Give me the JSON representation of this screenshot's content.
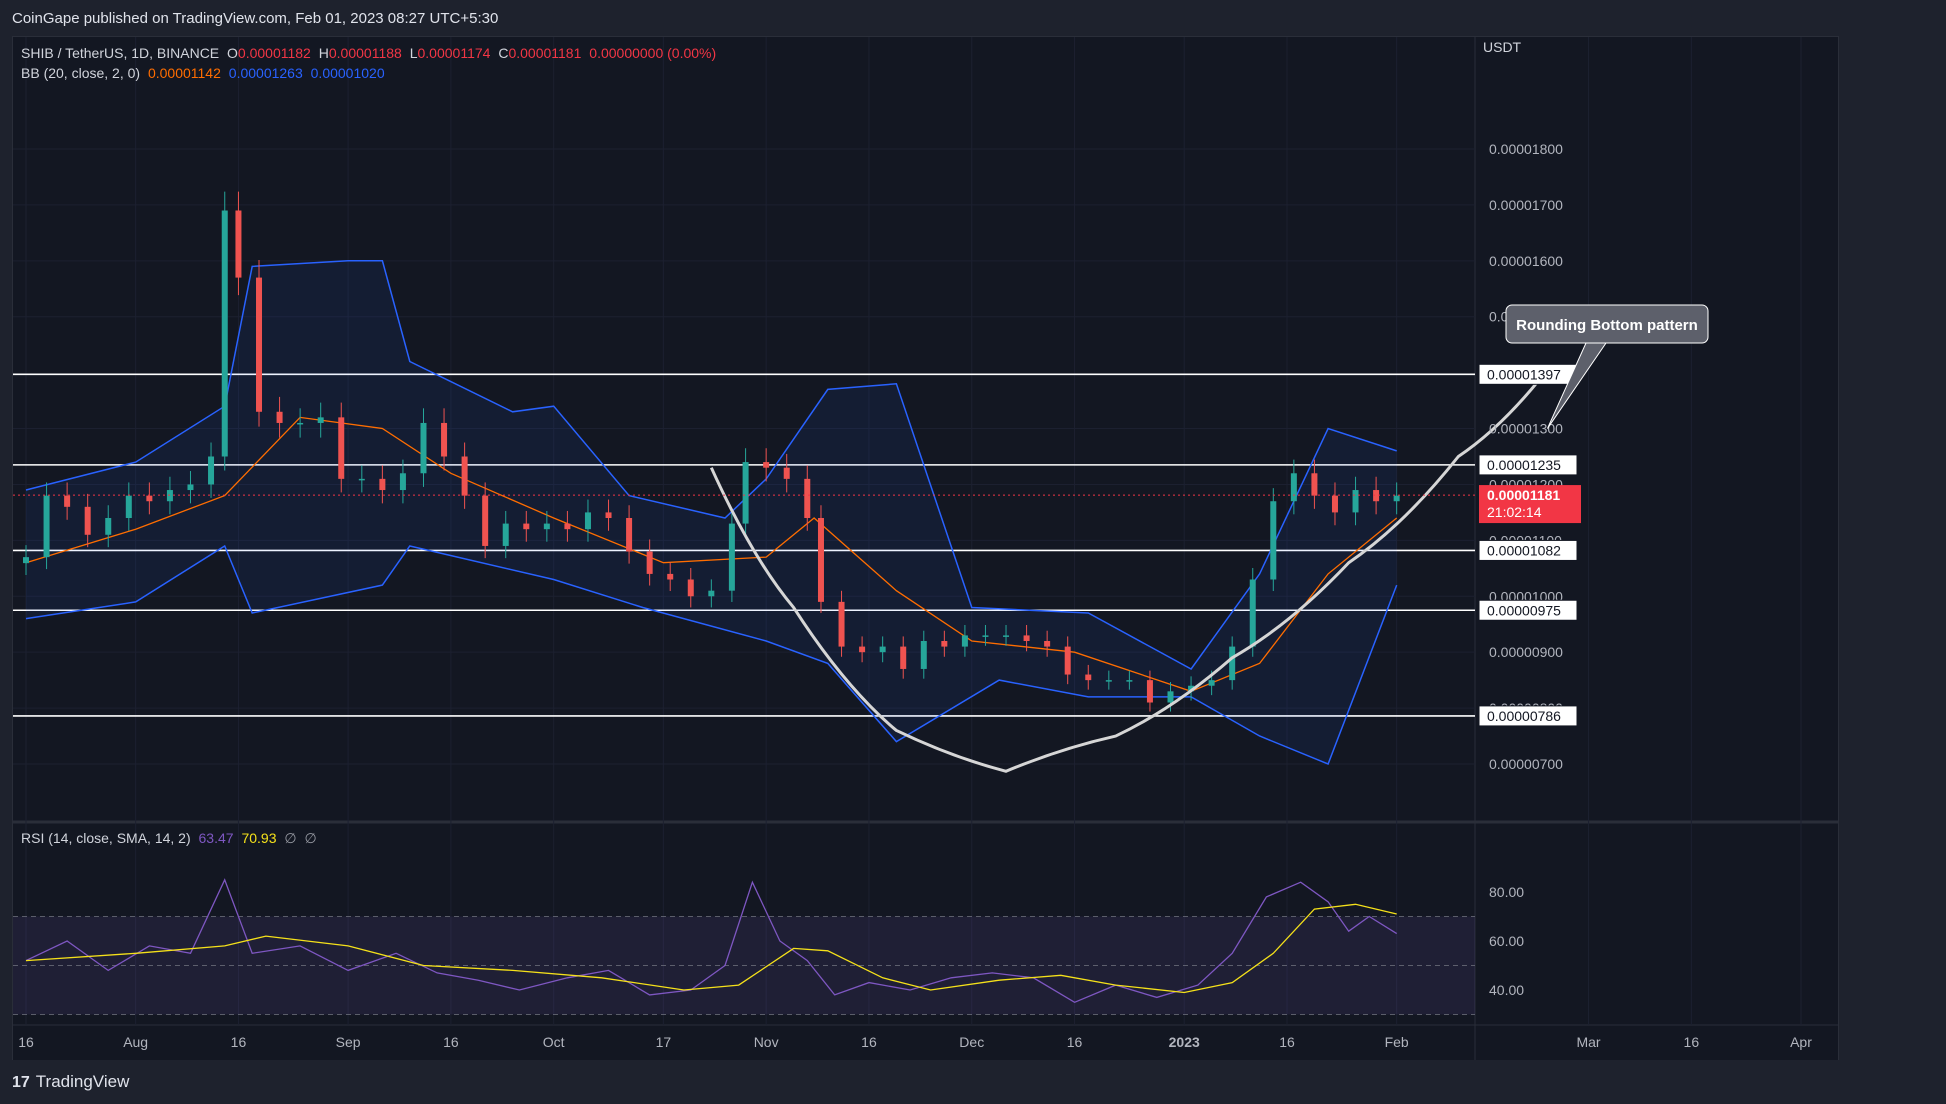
{
  "header": {
    "published": "CoinGape published on TradingView.com, Feb 01, 2023 08:27 UTC+5:30"
  },
  "footer": {
    "brand": "TradingView"
  },
  "legend_main": {
    "symbol": "SHIB / TetherUS, 1D, BINANCE",
    "o_label": "O",
    "o": "0.00001182",
    "h_label": "H",
    "h": "0.00001188",
    "l_label": "L",
    "l": "0.00001174",
    "c_label": "C",
    "c": "0.00001181",
    "change": "0.00000000 (0.00%)"
  },
  "legend_bb": {
    "label": "BB (20, close, 2, 0)",
    "basis": "0.00001142",
    "upper": "0.00001263",
    "lower": "0.00001020"
  },
  "legend_rsi": {
    "label": "RSI (14, close, SMA, 14, 2)",
    "rsi": "63.47",
    "sma": "70.93",
    "e1": "∅",
    "e2": "∅"
  },
  "colors": {
    "background": "#131722",
    "up": "#26a69a",
    "down": "#ef5350",
    "bb_band": "#2962ff",
    "bb_basis": "#ff6d00",
    "rsi_line": "#7e57c2",
    "rsi_sma": "#f5e11a",
    "price_tag": "#f23645"
  },
  "chart_data": [
    {
      "type": "candlestick",
      "title": "SHIB / TetherUS, 1D, BINANCE",
      "currency": "USDT",
      "y_ticks": [
        "0.00001800",
        "0.00001700",
        "0.00001600",
        "0.00001500",
        "0.00001300",
        "0.00001200",
        "0.00001100",
        "0.00001000",
        "0.00000900",
        "0.00000800",
        "0.00000700"
      ],
      "x_ticks": [
        "16",
        "Aug",
        "16",
        "Sep",
        "16",
        "Oct",
        "17",
        "Nov",
        "16",
        "Dec",
        "16",
        "2023",
        "16",
        "Feb",
        "Mar",
        "16",
        "Apr"
      ],
      "x_tick_dates": [
        "2022-07-16",
        "2022-08-01",
        "2022-08-16",
        "2022-09-01",
        "2022-09-16",
        "2022-10-01",
        "2022-10-17",
        "2022-11-01",
        "2022-11-16",
        "2022-12-01",
        "2022-12-16",
        "2023-01-01",
        "2023-01-16",
        "2023-02-01",
        "2023-03-01",
        "2023-03-16",
        "2023-04-01"
      ],
      "ylim": [
        6.5e-06,
        1.93e-05
      ],
      "horizontal_levels": [
        "0.00001397",
        "0.00001235",
        "0.00001082",
        "0.00000975",
        "0.00000786"
      ],
      "current_price": "0.00001181",
      "countdown": "21:02:14",
      "annotation": "Rounding Bottom pattern",
      "close_series": [
        {
          "date": "2022-07-16",
          "close": 1.07e-05
        },
        {
          "date": "2022-07-19",
          "close": 1.18e-05
        },
        {
          "date": "2022-07-22",
          "close": 1.16e-05
        },
        {
          "date": "2022-07-25",
          "close": 1.11e-05
        },
        {
          "date": "2022-07-28",
          "close": 1.14e-05
        },
        {
          "date": "2022-07-31",
          "close": 1.18e-05
        },
        {
          "date": "2022-08-03",
          "close": 1.17e-05
        },
        {
          "date": "2022-08-06",
          "close": 1.19e-05
        },
        {
          "date": "2022-08-09",
          "close": 1.2e-05
        },
        {
          "date": "2022-08-12",
          "close": 1.25e-05
        },
        {
          "date": "2022-08-14",
          "close": 1.69e-05
        },
        {
          "date": "2022-08-16",
          "close": 1.57e-05
        },
        {
          "date": "2022-08-19",
          "close": 1.33e-05
        },
        {
          "date": "2022-08-22",
          "close": 1.31e-05
        },
        {
          "date": "2022-08-25",
          "close": 1.31e-05
        },
        {
          "date": "2022-08-28",
          "close": 1.32e-05
        },
        {
          "date": "2022-08-31",
          "close": 1.21e-05
        },
        {
          "date": "2022-09-03",
          "close": 1.21e-05
        },
        {
          "date": "2022-09-06",
          "close": 1.19e-05
        },
        {
          "date": "2022-09-09",
          "close": 1.22e-05
        },
        {
          "date": "2022-09-12",
          "close": 1.31e-05
        },
        {
          "date": "2022-09-15",
          "close": 1.25e-05
        },
        {
          "date": "2022-09-18",
          "close": 1.18e-05
        },
        {
          "date": "2022-09-21",
          "close": 1.09e-05
        },
        {
          "date": "2022-09-24",
          "close": 1.13e-05
        },
        {
          "date": "2022-09-27",
          "close": 1.12e-05
        },
        {
          "date": "2022-09-30",
          "close": 1.13e-05
        },
        {
          "date": "2022-10-03",
          "close": 1.12e-05
        },
        {
          "date": "2022-10-06",
          "close": 1.15e-05
        },
        {
          "date": "2022-10-09",
          "close": 1.14e-05
        },
        {
          "date": "2022-10-12",
          "close": 1.08e-05
        },
        {
          "date": "2022-10-15",
          "close": 1.04e-05
        },
        {
          "date": "2022-10-18",
          "close": 1.03e-05
        },
        {
          "date": "2022-10-21",
          "close": 1e-05
        },
        {
          "date": "2022-10-24",
          "close": 1.01e-05
        },
        {
          "date": "2022-10-27",
          "close": 1.13e-05
        },
        {
          "date": "2022-10-29",
          "close": 1.24e-05
        },
        {
          "date": "2022-11-01",
          "close": 1.23e-05
        },
        {
          "date": "2022-11-04",
          "close": 1.21e-05
        },
        {
          "date": "2022-11-07",
          "close": 1.14e-05
        },
        {
          "date": "2022-11-09",
          "close": 9.9e-06
        },
        {
          "date": "2022-11-12",
          "close": 9.1e-06
        },
        {
          "date": "2022-11-15",
          "close": 9e-06
        },
        {
          "date": "2022-11-18",
          "close": 9.1e-06
        },
        {
          "date": "2022-11-21",
          "close": 8.7e-06
        },
        {
          "date": "2022-11-24",
          "close": 9.2e-06
        },
        {
          "date": "2022-11-27",
          "close": 9.1e-06
        },
        {
          "date": "2022-11-30",
          "close": 9.3e-06
        },
        {
          "date": "2022-12-03",
          "close": 9.3e-06
        },
        {
          "date": "2022-12-06",
          "close": 9.3e-06
        },
        {
          "date": "2022-12-09",
          "close": 9.2e-06
        },
        {
          "date": "2022-12-12",
          "close": 9.1e-06
        },
        {
          "date": "2022-12-15",
          "close": 8.6e-06
        },
        {
          "date": "2022-12-18",
          "close": 8.5e-06
        },
        {
          "date": "2022-12-21",
          "close": 8.5e-06
        },
        {
          "date": "2022-12-24",
          "close": 8.5e-06
        },
        {
          "date": "2022-12-27",
          "close": 8.1e-06
        },
        {
          "date": "2022-12-30",
          "close": 8.3e-06
        },
        {
          "date": "2023-01-02",
          "close": 8.4e-06
        },
        {
          "date": "2023-01-05",
          "close": 8.5e-06
        },
        {
          "date": "2023-01-08",
          "close": 9.1e-06
        },
        {
          "date": "2023-01-11",
          "close": 1.03e-05
        },
        {
          "date": "2023-01-14",
          "close": 1.17e-05
        },
        {
          "date": "2023-01-17",
          "close": 1.22e-05
        },
        {
          "date": "2023-01-20",
          "close": 1.18e-05
        },
        {
          "date": "2023-01-23",
          "close": 1.15e-05
        },
        {
          "date": "2023-01-26",
          "close": 1.19e-05
        },
        {
          "date": "2023-01-29",
          "close": 1.17e-05
        },
        {
          "date": "2023-02-01",
          "close": 1.18e-05
        }
      ],
      "bb_upper": [
        {
          "date": "2022-07-16",
          "value": 1.19e-05
        },
        {
          "date": "2022-08-01",
          "value": 1.24e-05
        },
        {
          "date": "2022-08-14",
          "value": 1.34e-05
        },
        {
          "date": "2022-08-18",
          "value": 1.59e-05
        },
        {
          "date": "2022-09-01",
          "value": 1.6e-05
        },
        {
          "date": "2022-09-06",
          "value": 1.6e-05
        },
        {
          "date": "2022-09-10",
          "value": 1.42e-05
        },
        {
          "date": "2022-09-25",
          "value": 1.33e-05
        },
        {
          "date": "2022-10-01",
          "value": 1.34e-05
        },
        {
          "date": "2022-10-12",
          "value": 1.18e-05
        },
        {
          "date": "2022-10-26",
          "value": 1.14e-05
        },
        {
          "date": "2022-11-01",
          "value": 1.21e-05
        },
        {
          "date": "2022-11-10",
          "value": 1.37e-05
        },
        {
          "date": "2022-11-20",
          "value": 1.38e-05
        },
        {
          "date": "2022-12-01",
          "value": 9.8e-06
        },
        {
          "date": "2022-12-18",
          "value": 9.7e-06
        },
        {
          "date": "2023-01-02",
          "value": 8.7e-06
        },
        {
          "date": "2023-01-12",
          "value": 1.04e-05
        },
        {
          "date": "2023-01-22",
          "value": 1.3e-05
        },
        {
          "date": "2023-02-01",
          "value": 1.26e-05
        }
      ],
      "bb_lower": [
        {
          "date": "2022-07-16",
          "value": 9.6e-06
        },
        {
          "date": "2022-08-01",
          "value": 9.9e-06
        },
        {
          "date": "2022-08-14",
          "value": 1.09e-05
        },
        {
          "date": "2022-08-18",
          "value": 9.7e-06
        },
        {
          "date": "2022-09-06",
          "value": 1.02e-05
        },
        {
          "date": "2022-09-10",
          "value": 1.09e-05
        },
        {
          "date": "2022-10-01",
          "value": 1.03e-05
        },
        {
          "date": "2022-10-14",
          "value": 9.8e-06
        },
        {
          "date": "2022-11-01",
          "value": 9.2e-06
        },
        {
          "date": "2022-11-10",
          "value": 8.8e-06
        },
        {
          "date": "2022-11-20",
          "value": 7.4e-06
        },
        {
          "date": "2022-12-05",
          "value": 8.5e-06
        },
        {
          "date": "2022-12-18",
          "value": 8.2e-06
        },
        {
          "date": "2023-01-02",
          "value": 8.2e-06
        },
        {
          "date": "2023-01-12",
          "value": 7.5e-06
        },
        {
          "date": "2023-01-22",
          "value": 7e-06
        },
        {
          "date": "2023-02-01",
          "value": 1.02e-05
        }
      ],
      "bb_basis": [
        {
          "date": "2022-07-16",
          "value": 1.06e-05
        },
        {
          "date": "2022-08-01",
          "value": 1.12e-05
        },
        {
          "date": "2022-08-14",
          "value": 1.18e-05
        },
        {
          "date": "2022-08-25",
          "value": 1.32e-05
        },
        {
          "date": "2022-09-06",
          "value": 1.3e-05
        },
        {
          "date": "2022-09-16",
          "value": 1.22e-05
        },
        {
          "date": "2022-10-01",
          "value": 1.14e-05
        },
        {
          "date": "2022-10-17",
          "value": 1.06e-05
        },
        {
          "date": "2022-11-01",
          "value": 1.07e-05
        },
        {
          "date": "2022-11-08",
          "value": 1.14e-05
        },
        {
          "date": "2022-11-20",
          "value": 1.01e-05
        },
        {
          "date": "2022-12-01",
          "value": 9.2e-06
        },
        {
          "date": "2022-12-16",
          "value": 9e-06
        },
        {
          "date": "2023-01-02",
          "value": 8.3e-06
        },
        {
          "date": "2023-01-12",
          "value": 8.8e-06
        },
        {
          "date": "2023-01-22",
          "value": 1.04e-05
        },
        {
          "date": "2023-02-01",
          "value": 1.14e-05
        }
      ]
    },
    {
      "type": "line",
      "title": "RSI (14, close, SMA, 14, 2)",
      "y_ticks": [
        "80.00",
        "60.00",
        "40.00"
      ],
      "bands": [
        70,
        50,
        30
      ],
      "ylim": [
        22,
        92
      ],
      "series": [
        {
          "name": "RSI",
          "values": [
            {
              "date": "2022-07-16",
              "value": 52
            },
            {
              "date": "2022-07-22",
              "value": 60
            },
            {
              "date": "2022-07-28",
              "value": 48
            },
            {
              "date": "2022-08-03",
              "value": 58
            },
            {
              "date": "2022-08-09",
              "value": 55
            },
            {
              "date": "2022-08-14",
              "value": 85
            },
            {
              "date": "2022-08-18",
              "value": 55
            },
            {
              "date": "2022-08-25",
              "value": 58
            },
            {
              "date": "2022-09-01",
              "value": 48
            },
            {
              "date": "2022-09-08",
              "value": 55
            },
            {
              "date": "2022-09-14",
              "value": 47
            },
            {
              "date": "2022-09-20",
              "value": 44
            },
            {
              "date": "2022-09-26",
              "value": 40
            },
            {
              "date": "2022-10-03",
              "value": 45
            },
            {
              "date": "2022-10-09",
              "value": 48
            },
            {
              "date": "2022-10-15",
              "value": 38
            },
            {
              "date": "2022-10-21",
              "value": 40
            },
            {
              "date": "2022-10-26",
              "value": 50
            },
            {
              "date": "2022-10-30",
              "value": 84
            },
            {
              "date": "2022-11-03",
              "value": 60
            },
            {
              "date": "2022-11-07",
              "value": 52
            },
            {
              "date": "2022-11-11",
              "value": 38
            },
            {
              "date": "2022-11-16",
              "value": 43
            },
            {
              "date": "2022-11-22",
              "value": 40
            },
            {
              "date": "2022-11-28",
              "value": 45
            },
            {
              "date": "2022-12-04",
              "value": 47
            },
            {
              "date": "2022-12-10",
              "value": 45
            },
            {
              "date": "2022-12-16",
              "value": 35
            },
            {
              "date": "2022-12-22",
              "value": 42
            },
            {
              "date": "2022-12-28",
              "value": 37
            },
            {
              "date": "2023-01-03",
              "value": 42
            },
            {
              "date": "2023-01-08",
              "value": 55
            },
            {
              "date": "2023-01-13",
              "value": 78
            },
            {
              "date": "2023-01-18",
              "value": 84
            },
            {
              "date": "2023-01-22",
              "value": 76
            },
            {
              "date": "2023-01-25",
              "value": 64
            },
            {
              "date": "2023-01-28",
              "value": 70
            },
            {
              "date": "2023-02-01",
              "value": 63
            }
          ]
        },
        {
          "name": "SMA",
          "values": [
            {
              "date": "2022-07-16",
              "value": 52
            },
            {
              "date": "2022-08-01",
              "value": 55
            },
            {
              "date": "2022-08-14",
              "value": 58
            },
            {
              "date": "2022-08-20",
              "value": 62
            },
            {
              "date": "2022-09-01",
              "value": 58
            },
            {
              "date": "2022-09-12",
              "value": 50
            },
            {
              "date": "2022-09-25",
              "value": 48
            },
            {
              "date": "2022-10-08",
              "value": 45
            },
            {
              "date": "2022-10-20",
              "value": 40
            },
            {
              "date": "2022-10-28",
              "value": 42
            },
            {
              "date": "2022-11-05",
              "value": 57
            },
            {
              "date": "2022-11-10",
              "value": 56
            },
            {
              "date": "2022-11-18",
              "value": 45
            },
            {
              "date": "2022-11-25",
              "value": 40
            },
            {
              "date": "2022-12-05",
              "value": 44
            },
            {
              "date": "2022-12-14",
              "value": 46
            },
            {
              "date": "2022-12-22",
              "value": 42
            },
            {
              "date": "2023-01-01",
              "value": 39
            },
            {
              "date": "2023-01-08",
              "value": 43
            },
            {
              "date": "2023-01-14",
              "value": 55
            },
            {
              "date": "2023-01-20",
              "value": 73
            },
            {
              "date": "2023-01-26",
              "value": 75
            },
            {
              "date": "2023-02-01",
              "value": 71
            }
          ]
        }
      ]
    }
  ]
}
